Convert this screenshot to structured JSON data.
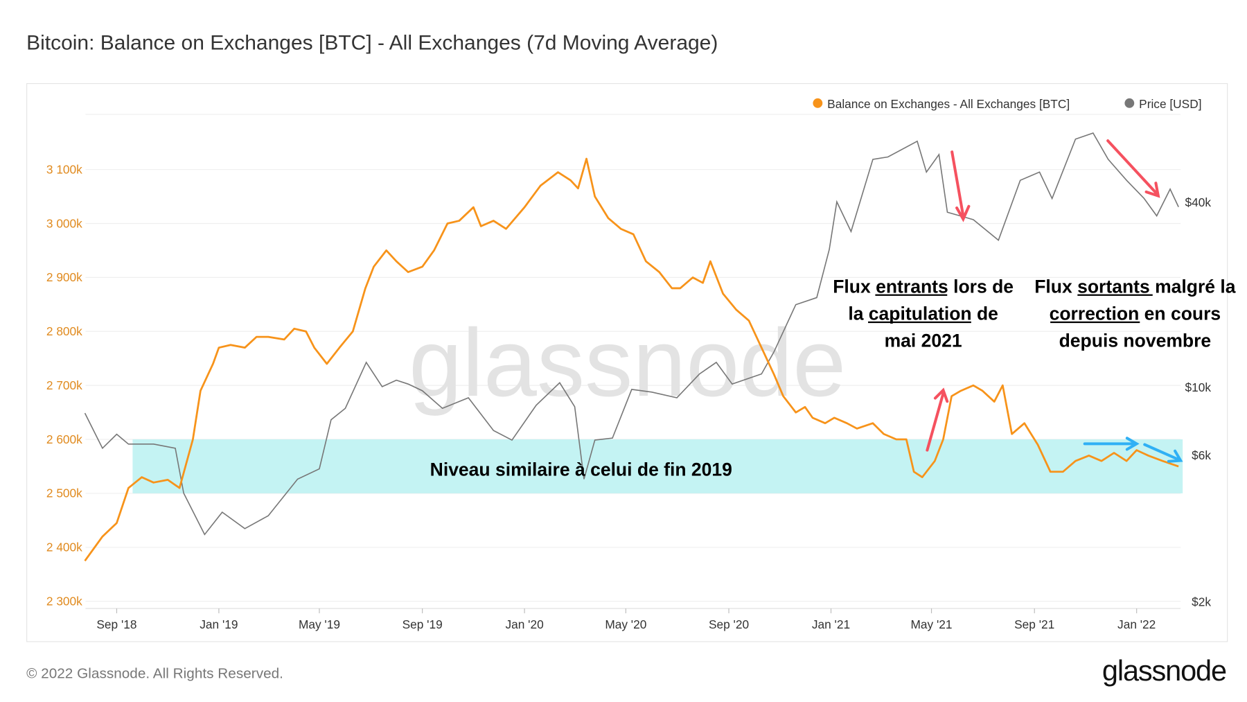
{
  "title": "Bitcoin: Balance on Exchanges [BTC] - All Exchanges (7d Moving Average)",
  "footer": "© 2022 Glassnode. All Rights Reserved.",
  "logo": "glassnode",
  "watermark": "glassnode",
  "colors": {
    "balance": "#f7931a",
    "price": "#777777",
    "band": "#c4f3f3",
    "red_arrow": "#f5515f",
    "blue_arrow": "#2fb0f5"
  },
  "annotations": {
    "band_label": "Niveau similaire à celui de fin 2019",
    "inflows": [
      "Flux entrants lors de",
      "la capitulation de",
      "mai 2021"
    ],
    "outflows": [
      "Flux sortants malgré la",
      "correction en cours",
      "depuis novembre"
    ]
  },
  "chart_data": {
    "type": "line",
    "title": "Bitcoin: Balance on Exchanges [BTC] - All Exchanges (7d Moving Average)",
    "legend": {
      "position": "top-right",
      "entries": [
        "Balance on Exchanges - All Exchanges [BTC]",
        "Price [USD]"
      ]
    },
    "grid": true,
    "x_ticks": [
      "Sep '18",
      "Jan '19",
      "May '19",
      "Sep '19",
      "Jan '20",
      "May '20",
      "Sep '20",
      "Jan '21",
      "May '21",
      "Sep '21",
      "Jan '22"
    ],
    "x_tick_dates": [
      "2018-09-01",
      "2019-01-01",
      "2019-05-01",
      "2019-09-01",
      "2020-01-01",
      "2020-05-01",
      "2020-09-01",
      "2021-01-01",
      "2021-05-01",
      "2021-09-01",
      "2022-01-01"
    ],
    "y_left": {
      "ticks": [
        "2 300k",
        "2 400k",
        "2 500k",
        "2 600k",
        "2 700k",
        "2 800k",
        "2 900k",
        "3 000k",
        "3 100k"
      ],
      "values": [
        2300,
        2400,
        2500,
        2600,
        2700,
        2800,
        2900,
        3000,
        3100
      ],
      "range": [
        2300,
        3200
      ],
      "unit": "k BTC"
    },
    "y_right": {
      "scale": "log",
      "ticks": [
        "$2k",
        "$6k",
        "$10k",
        "$40k"
      ],
      "values": [
        2000,
        6000,
        10000,
        40000
      ]
    },
    "highlight_band": {
      "from": "2018-09-20",
      "to": "2022-02-25",
      "y_range": [
        2500,
        2600
      ]
    },
    "series": [
      {
        "name": "Balance on Exchanges - All Exchanges [BTC]",
        "axis": "left",
        "points": [
          [
            "2018-07-25",
            2375
          ],
          [
            "2018-08-15",
            2420
          ],
          [
            "2018-09-01",
            2445
          ],
          [
            "2018-09-15",
            2510
          ],
          [
            "2018-10-01",
            2530
          ],
          [
            "2018-10-15",
            2520
          ],
          [
            "2018-11-01",
            2525
          ],
          [
            "2018-11-15",
            2510
          ],
          [
            "2018-12-01",
            2600
          ],
          [
            "2018-12-10",
            2690
          ],
          [
            "2018-12-25",
            2740
          ],
          [
            "2019-01-01",
            2770
          ],
          [
            "2019-01-15",
            2775
          ],
          [
            "2019-02-01",
            2770
          ],
          [
            "2019-02-15",
            2790
          ],
          [
            "2019-03-01",
            2790
          ],
          [
            "2019-03-20",
            2785
          ],
          [
            "2019-04-01",
            2805
          ],
          [
            "2019-04-15",
            2800
          ],
          [
            "2019-04-25",
            2770
          ],
          [
            "2019-05-10",
            2740
          ],
          [
            "2019-05-25",
            2770
          ],
          [
            "2019-06-10",
            2800
          ],
          [
            "2019-06-25",
            2880
          ],
          [
            "2019-07-05",
            2920
          ],
          [
            "2019-07-20",
            2950
          ],
          [
            "2019-08-01",
            2930
          ],
          [
            "2019-08-15",
            2910
          ],
          [
            "2019-09-01",
            2920
          ],
          [
            "2019-09-15",
            2950
          ],
          [
            "2019-10-01",
            3000
          ],
          [
            "2019-10-15",
            3005
          ],
          [
            "2019-11-01",
            3030
          ],
          [
            "2019-11-10",
            2995
          ],
          [
            "2019-11-25",
            3005
          ],
          [
            "2019-12-10",
            2990
          ],
          [
            "2020-01-01",
            3030
          ],
          [
            "2020-01-20",
            3070
          ],
          [
            "2020-02-10",
            3095
          ],
          [
            "2020-02-25",
            3080
          ],
          [
            "2020-03-05",
            3065
          ],
          [
            "2020-03-15",
            3120
          ],
          [
            "2020-03-25",
            3050
          ],
          [
            "2020-04-10",
            3010
          ],
          [
            "2020-04-25",
            2990
          ],
          [
            "2020-05-10",
            2980
          ],
          [
            "2020-05-25",
            2930
          ],
          [
            "2020-06-10",
            2910
          ],
          [
            "2020-06-25",
            2880
          ],
          [
            "2020-07-05",
            2880
          ],
          [
            "2020-07-20",
            2900
          ],
          [
            "2020-08-01",
            2890
          ],
          [
            "2020-08-10",
            2930
          ],
          [
            "2020-08-25",
            2870
          ],
          [
            "2020-09-10",
            2840
          ],
          [
            "2020-09-25",
            2820
          ],
          [
            "2020-10-10",
            2770
          ],
          [
            "2020-10-25",
            2720
          ],
          [
            "2020-11-05",
            2680
          ],
          [
            "2020-11-20",
            2650
          ],
          [
            "2020-12-01",
            2660
          ],
          [
            "2020-12-10",
            2640
          ],
          [
            "2020-12-25",
            2630
          ],
          [
            "2021-01-05",
            2640
          ],
          [
            "2021-01-20",
            2630
          ],
          [
            "2021-02-01",
            2620
          ],
          [
            "2021-02-20",
            2630
          ],
          [
            "2021-03-05",
            2610
          ],
          [
            "2021-03-20",
            2600
          ],
          [
            "2021-04-01",
            2600
          ],
          [
            "2021-04-10",
            2540
          ],
          [
            "2021-04-20",
            2530
          ],
          [
            "2021-05-05",
            2560
          ],
          [
            "2021-05-15",
            2600
          ],
          [
            "2021-05-25",
            2680
          ],
          [
            "2021-06-05",
            2690
          ],
          [
            "2021-06-20",
            2700
          ],
          [
            "2021-07-01",
            2690
          ],
          [
            "2021-07-15",
            2670
          ],
          [
            "2021-07-25",
            2700
          ],
          [
            "2021-08-05",
            2610
          ],
          [
            "2021-08-20",
            2630
          ],
          [
            "2021-09-05",
            2590
          ],
          [
            "2021-09-20",
            2540
          ],
          [
            "2021-10-05",
            2540
          ],
          [
            "2021-10-20",
            2560
          ],
          [
            "2021-11-05",
            2570
          ],
          [
            "2021-11-20",
            2560
          ],
          [
            "2021-12-05",
            2575
          ],
          [
            "2021-12-20",
            2560
          ],
          [
            "2022-01-01",
            2580
          ],
          [
            "2022-01-15",
            2570
          ],
          [
            "2022-02-01",
            2560
          ],
          [
            "2022-02-20",
            2550
          ]
        ]
      },
      {
        "name": "Price [USD]",
        "axis": "right",
        "points": [
          [
            "2018-07-25",
            8200
          ],
          [
            "2018-08-15",
            6300
          ],
          [
            "2018-09-01",
            7000
          ],
          [
            "2018-09-15",
            6500
          ],
          [
            "2018-10-15",
            6500
          ],
          [
            "2018-11-10",
            6300
          ],
          [
            "2018-11-20",
            4500
          ],
          [
            "2018-12-15",
            3300
          ],
          [
            "2019-01-05",
            3900
          ],
          [
            "2019-02-01",
            3450
          ],
          [
            "2019-03-01",
            3800
          ],
          [
            "2019-04-05",
            5000
          ],
          [
            "2019-05-01",
            5400
          ],
          [
            "2019-05-15",
            7800
          ],
          [
            "2019-06-01",
            8500
          ],
          [
            "2019-06-26",
            12000
          ],
          [
            "2019-07-15",
            10000
          ],
          [
            "2019-08-01",
            10500
          ],
          [
            "2019-08-15",
            10200
          ],
          [
            "2019-09-01",
            9700
          ],
          [
            "2019-09-25",
            8500
          ],
          [
            "2019-10-26",
            9200
          ],
          [
            "2019-11-25",
            7200
          ],
          [
            "2019-12-17",
            6700
          ],
          [
            "2020-01-15",
            8700
          ],
          [
            "2020-02-12",
            10300
          ],
          [
            "2020-03-01",
            8600
          ],
          [
            "2020-03-12",
            5000
          ],
          [
            "2020-03-25",
            6700
          ],
          [
            "2020-04-15",
            6800
          ],
          [
            "2020-05-08",
            9800
          ],
          [
            "2020-06-01",
            9600
          ],
          [
            "2020-07-01",
            9200
          ],
          [
            "2020-07-28",
            11000
          ],
          [
            "2020-08-17",
            12000
          ],
          [
            "2020-09-05",
            10200
          ],
          [
            "2020-10-10",
            11000
          ],
          [
            "2020-10-25",
            13000
          ],
          [
            "2020-11-20",
            18500
          ],
          [
            "2020-12-15",
            19500
          ],
          [
            "2020-12-30",
            28000
          ],
          [
            "2021-01-08",
            40000
          ],
          [
            "2021-01-25",
            32000
          ],
          [
            "2021-02-20",
            55000
          ],
          [
            "2021-03-10",
            56000
          ],
          [
            "2021-04-14",
            63000
          ],
          [
            "2021-04-25",
            50000
          ],
          [
            "2021-05-10",
            57000
          ],
          [
            "2021-05-20",
            37000
          ],
          [
            "2021-06-20",
            35000
          ],
          [
            "2021-07-20",
            30000
          ],
          [
            "2021-08-15",
            47000
          ],
          [
            "2021-09-07",
            50000
          ],
          [
            "2021-09-22",
            41000
          ],
          [
            "2021-10-20",
            64000
          ],
          [
            "2021-11-10",
            67000
          ],
          [
            "2021-11-28",
            55000
          ],
          [
            "2021-12-20",
            47000
          ],
          [
            "2022-01-10",
            41000
          ],
          [
            "2022-01-25",
            36000
          ],
          [
            "2022-02-10",
            44000
          ],
          [
            "2022-02-20",
            38500
          ]
        ]
      }
    ]
  }
}
